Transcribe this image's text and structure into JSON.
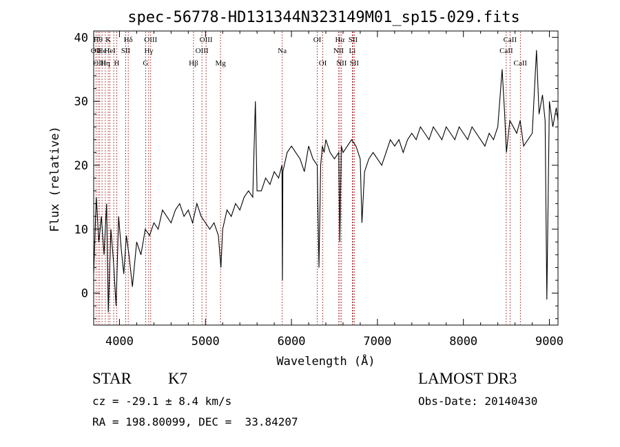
{
  "chart_data": {
    "type": "line",
    "title": "spec-56778-HD131344N323149M01_sp15-029.fits",
    "xlabel": "Wavelength (Å)",
    "ylabel": "Flux (relative)",
    "xlim": [
      3700,
      9100
    ],
    "ylim": [
      -5,
      41
    ],
    "xticks": [
      4000,
      5000,
      6000,
      7000,
      8000,
      9000
    ],
    "yticks": [
      0,
      10,
      20,
      30,
      40
    ],
    "spectrum": [
      [
        3700,
        3
      ],
      [
        3730,
        15
      ],
      [
        3760,
        8
      ],
      [
        3790,
        12
      ],
      [
        3820,
        6
      ],
      [
        3850,
        14
      ],
      [
        3870,
        -3
      ],
      [
        3900,
        10
      ],
      [
        3930,
        5
      ],
      [
        3960,
        -2
      ],
      [
        3990,
        12
      ],
      [
        4020,
        7
      ],
      [
        4050,
        3
      ],
      [
        4080,
        9
      ],
      [
        4110,
        6
      ],
      [
        4150,
        1
      ],
      [
        4200,
        8
      ],
      [
        4250,
        6
      ],
      [
        4300,
        10
      ],
      [
        4350,
        9
      ],
      [
        4400,
        11
      ],
      [
        4450,
        10
      ],
      [
        4500,
        13
      ],
      [
        4550,
        12
      ],
      [
        4600,
        11
      ],
      [
        4650,
        13
      ],
      [
        4700,
        14
      ],
      [
        4750,
        12
      ],
      [
        4800,
        13
      ],
      [
        4850,
        11
      ],
      [
        4900,
        14
      ],
      [
        4950,
        12
      ],
      [
        5000,
        11
      ],
      [
        5050,
        10
      ],
      [
        5100,
        11
      ],
      [
        5150,
        9
      ],
      [
        5180,
        4
      ],
      [
        5200,
        10
      ],
      [
        5250,
        13
      ],
      [
        5300,
        12
      ],
      [
        5350,
        14
      ],
      [
        5400,
        13
      ],
      [
        5450,
        15
      ],
      [
        5500,
        16
      ],
      [
        5550,
        15
      ],
      [
        5580,
        30
      ],
      [
        5600,
        16
      ],
      [
        5650,
        16
      ],
      [
        5700,
        18
      ],
      [
        5750,
        17
      ],
      [
        5800,
        19
      ],
      [
        5850,
        18
      ],
      [
        5890,
        20
      ],
      [
        5895,
        2
      ],
      [
        5900,
        19
      ],
      [
        5950,
        22
      ],
      [
        6000,
        23
      ],
      [
        6050,
        22
      ],
      [
        6100,
        21
      ],
      [
        6150,
        19
      ],
      [
        6200,
        23
      ],
      [
        6250,
        21
      ],
      [
        6300,
        20
      ],
      [
        6320,
        4
      ],
      [
        6340,
        20
      ],
      [
        6360,
        23
      ],
      [
        6380,
        22
      ],
      [
        6400,
        24
      ],
      [
        6450,
        22
      ],
      [
        6500,
        21
      ],
      [
        6550,
        22
      ],
      [
        6563,
        8
      ],
      [
        6580,
        23
      ],
      [
        6600,
        22
      ],
      [
        6650,
        23
      ],
      [
        6700,
        24
      ],
      [
        6750,
        23
      ],
      [
        6800,
        21
      ],
      [
        6820,
        11
      ],
      [
        6850,
        19
      ],
      [
        6900,
        21
      ],
      [
        6950,
        22
      ],
      [
        7000,
        21
      ],
      [
        7050,
        20
      ],
      [
        7100,
        22
      ],
      [
        7150,
        24
      ],
      [
        7200,
        23
      ],
      [
        7250,
        24
      ],
      [
        7300,
        22
      ],
      [
        7350,
        24
      ],
      [
        7400,
        25
      ],
      [
        7450,
        24
      ],
      [
        7500,
        26
      ],
      [
        7550,
        25
      ],
      [
        7600,
        24
      ],
      [
        7650,
        26
      ],
      [
        7700,
        25
      ],
      [
        7750,
        24
      ],
      [
        7800,
        26
      ],
      [
        7850,
        25
      ],
      [
        7900,
        24
      ],
      [
        7950,
        26
      ],
      [
        8000,
        25
      ],
      [
        8050,
        24
      ],
      [
        8100,
        26
      ],
      [
        8150,
        25
      ],
      [
        8200,
        24
      ],
      [
        8250,
        23
      ],
      [
        8300,
        25
      ],
      [
        8350,
        24
      ],
      [
        8400,
        26
      ],
      [
        8450,
        35
      ],
      [
        8480,
        28
      ],
      [
        8500,
        22
      ],
      [
        8540,
        27
      ],
      [
        8580,
        26
      ],
      [
        8620,
        25
      ],
      [
        8660,
        27
      ],
      [
        8700,
        23
      ],
      [
        8750,
        24
      ],
      [
        8800,
        25
      ],
      [
        8850,
        38
      ],
      [
        8880,
        28
      ],
      [
        8920,
        31
      ],
      [
        8950,
        27
      ],
      [
        8970,
        -1
      ],
      [
        9000,
        30
      ],
      [
        9040,
        26
      ],
      [
        9080,
        29
      ],
      [
        9100,
        27
      ]
    ],
    "lines": [
      {
        "wavelength": 3727,
        "label": "OII",
        "row": 1
      },
      {
        "wavelength": 3750,
        "label": "Hθ",
        "row": 0
      },
      {
        "wavelength": 3770,
        "label": "OIII",
        "row": 2
      },
      {
        "wavelength": 3797,
        "label": "He",
        "row": 1
      },
      {
        "wavelength": 3835,
        "label": "Hη",
        "row": 2
      },
      {
        "wavelength": 3869,
        "label": "K",
        "row": 0
      },
      {
        "wavelength": 3889,
        "label": "HeI",
        "row": 1
      },
      {
        "wavelength": 3933,
        "label": "",
        "row": 0
      },
      {
        "wavelength": 3968,
        "label": "H",
        "row": 2
      },
      {
        "wavelength": 4072,
        "label": "SII",
        "row": 1
      },
      {
        "wavelength": 4102,
        "label": "Hδ",
        "row": 0
      },
      {
        "wavelength": 4304,
        "label": "G",
        "row": 2
      },
      {
        "wavelength": 4340,
        "label": "Hγ",
        "row": 1
      },
      {
        "wavelength": 4363,
        "label": "OIII",
        "row": 0
      },
      {
        "wavelength": 4861,
        "label": "Hβ",
        "row": 2
      },
      {
        "wavelength": 4959,
        "label": "OIII",
        "row": 1
      },
      {
        "wavelength": 5007,
        "label": "OIII",
        "row": 0
      },
      {
        "wavelength": 5175,
        "label": "Mg",
        "row": 2
      },
      {
        "wavelength": 5893,
        "label": "Na",
        "row": 1
      },
      {
        "wavelength": 6300,
        "label": "OI",
        "row": 0
      },
      {
        "wavelength": 6364,
        "label": "OI",
        "row": 2
      },
      {
        "wavelength": 6548,
        "label": "NII",
        "row": 1
      },
      {
        "wavelength": 6563,
        "label": "Hα",
        "row": 0
      },
      {
        "wavelength": 6583,
        "label": "NII",
        "row": 2
      },
      {
        "wavelength": 6708,
        "label": "Li",
        "row": 1
      },
      {
        "wavelength": 6716,
        "label": "SII",
        "row": 0
      },
      {
        "wavelength": 6731,
        "label": "SII",
        "row": 2
      },
      {
        "wavelength": 8498,
        "label": "CaII",
        "row": 1
      },
      {
        "wavelength": 8542,
        "label": "CaII",
        "row": 0
      },
      {
        "wavelength": 8662,
        "label": "CaII",
        "row": 2
      }
    ]
  },
  "info": {
    "class": "STAR",
    "subclass": "K7",
    "survey": "LAMOST DR3",
    "cz": "cz = -29.1 ± 8.4 km/s",
    "obs_date": "Obs-Date: 20140430",
    "coords": "RA = 198.80099, DEC =  33.84207"
  },
  "colors": {
    "line_marker": "#a01818",
    "spectrum": "#000000"
  }
}
